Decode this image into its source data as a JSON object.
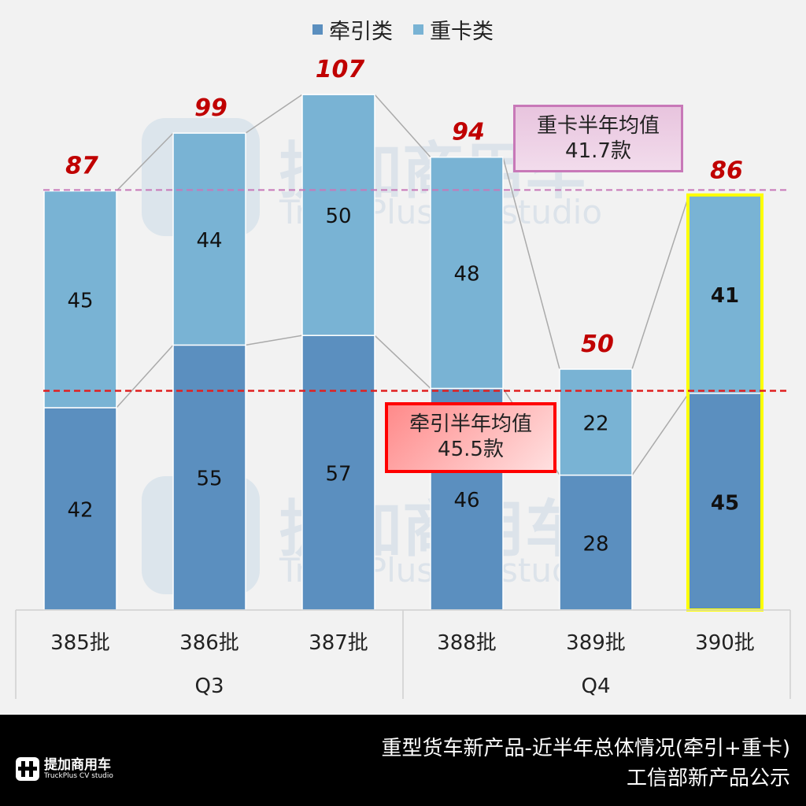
{
  "legend": {
    "items": [
      {
        "label": "牵引类",
        "color": "#5b8fbf"
      },
      {
        "label": "重卡类",
        "color": "#79b3d4"
      }
    ]
  },
  "annotations": {
    "heavy_avg": {
      "line1": "重卡半年均值",
      "line2": "41.7款"
    },
    "tractor_avg": {
      "line1": "牵引半年均值",
      "line2": "45.5款"
    }
  },
  "watermark": {
    "cn": "提加商用车",
    "en": "TruckPlus CV studio"
  },
  "footer": {
    "title_line1": "重型货车新产品-近半年总体情况(牵引+重卡)",
    "title_line2": "工信部新产品公示",
    "logo_cn": "提加商用车",
    "logo_en": "TruckPlus CV studio"
  },
  "chart_data": {
    "type": "bar",
    "stacked": true,
    "categories": [
      "385批",
      "386批",
      "387批",
      "388批",
      "389批",
      "390批"
    ],
    "groups": [
      {
        "label": "Q3",
        "categories": [
          "385批",
          "386批",
          "387批"
        ]
      },
      {
        "label": "Q4",
        "categories": [
          "388批",
          "389批",
          "390批"
        ]
      }
    ],
    "series": [
      {
        "name": "牵引类",
        "color": "#5b8fbf",
        "values": [
          42,
          55,
          57,
          46,
          28,
          45
        ]
      },
      {
        "name": "重卡类",
        "color": "#79b3d4",
        "values": [
          45,
          44,
          50,
          48,
          22,
          41
        ]
      }
    ],
    "totals": [
      87,
      99,
      107,
      94,
      50,
      86
    ],
    "reference_lines": [
      {
        "label": "牵引半年均值",
        "value": 45.5,
        "unit": "款",
        "color": "#e02020",
        "style": "dashed"
      },
      {
        "label": "重卡半年均值",
        "value": 41.7,
        "unit": "款",
        "color": "#c878b8",
        "style": "dashed",
        "plotted_at_cumulative": 87.2
      }
    ],
    "highlighted_category": "390批",
    "legend_position": "top",
    "grid": false,
    "title": "重型货车新产品-近半年总体情况(牵引+重卡)",
    "subtitle": "工信部新产品公示",
    "xlabel": "",
    "ylabel": ""
  }
}
